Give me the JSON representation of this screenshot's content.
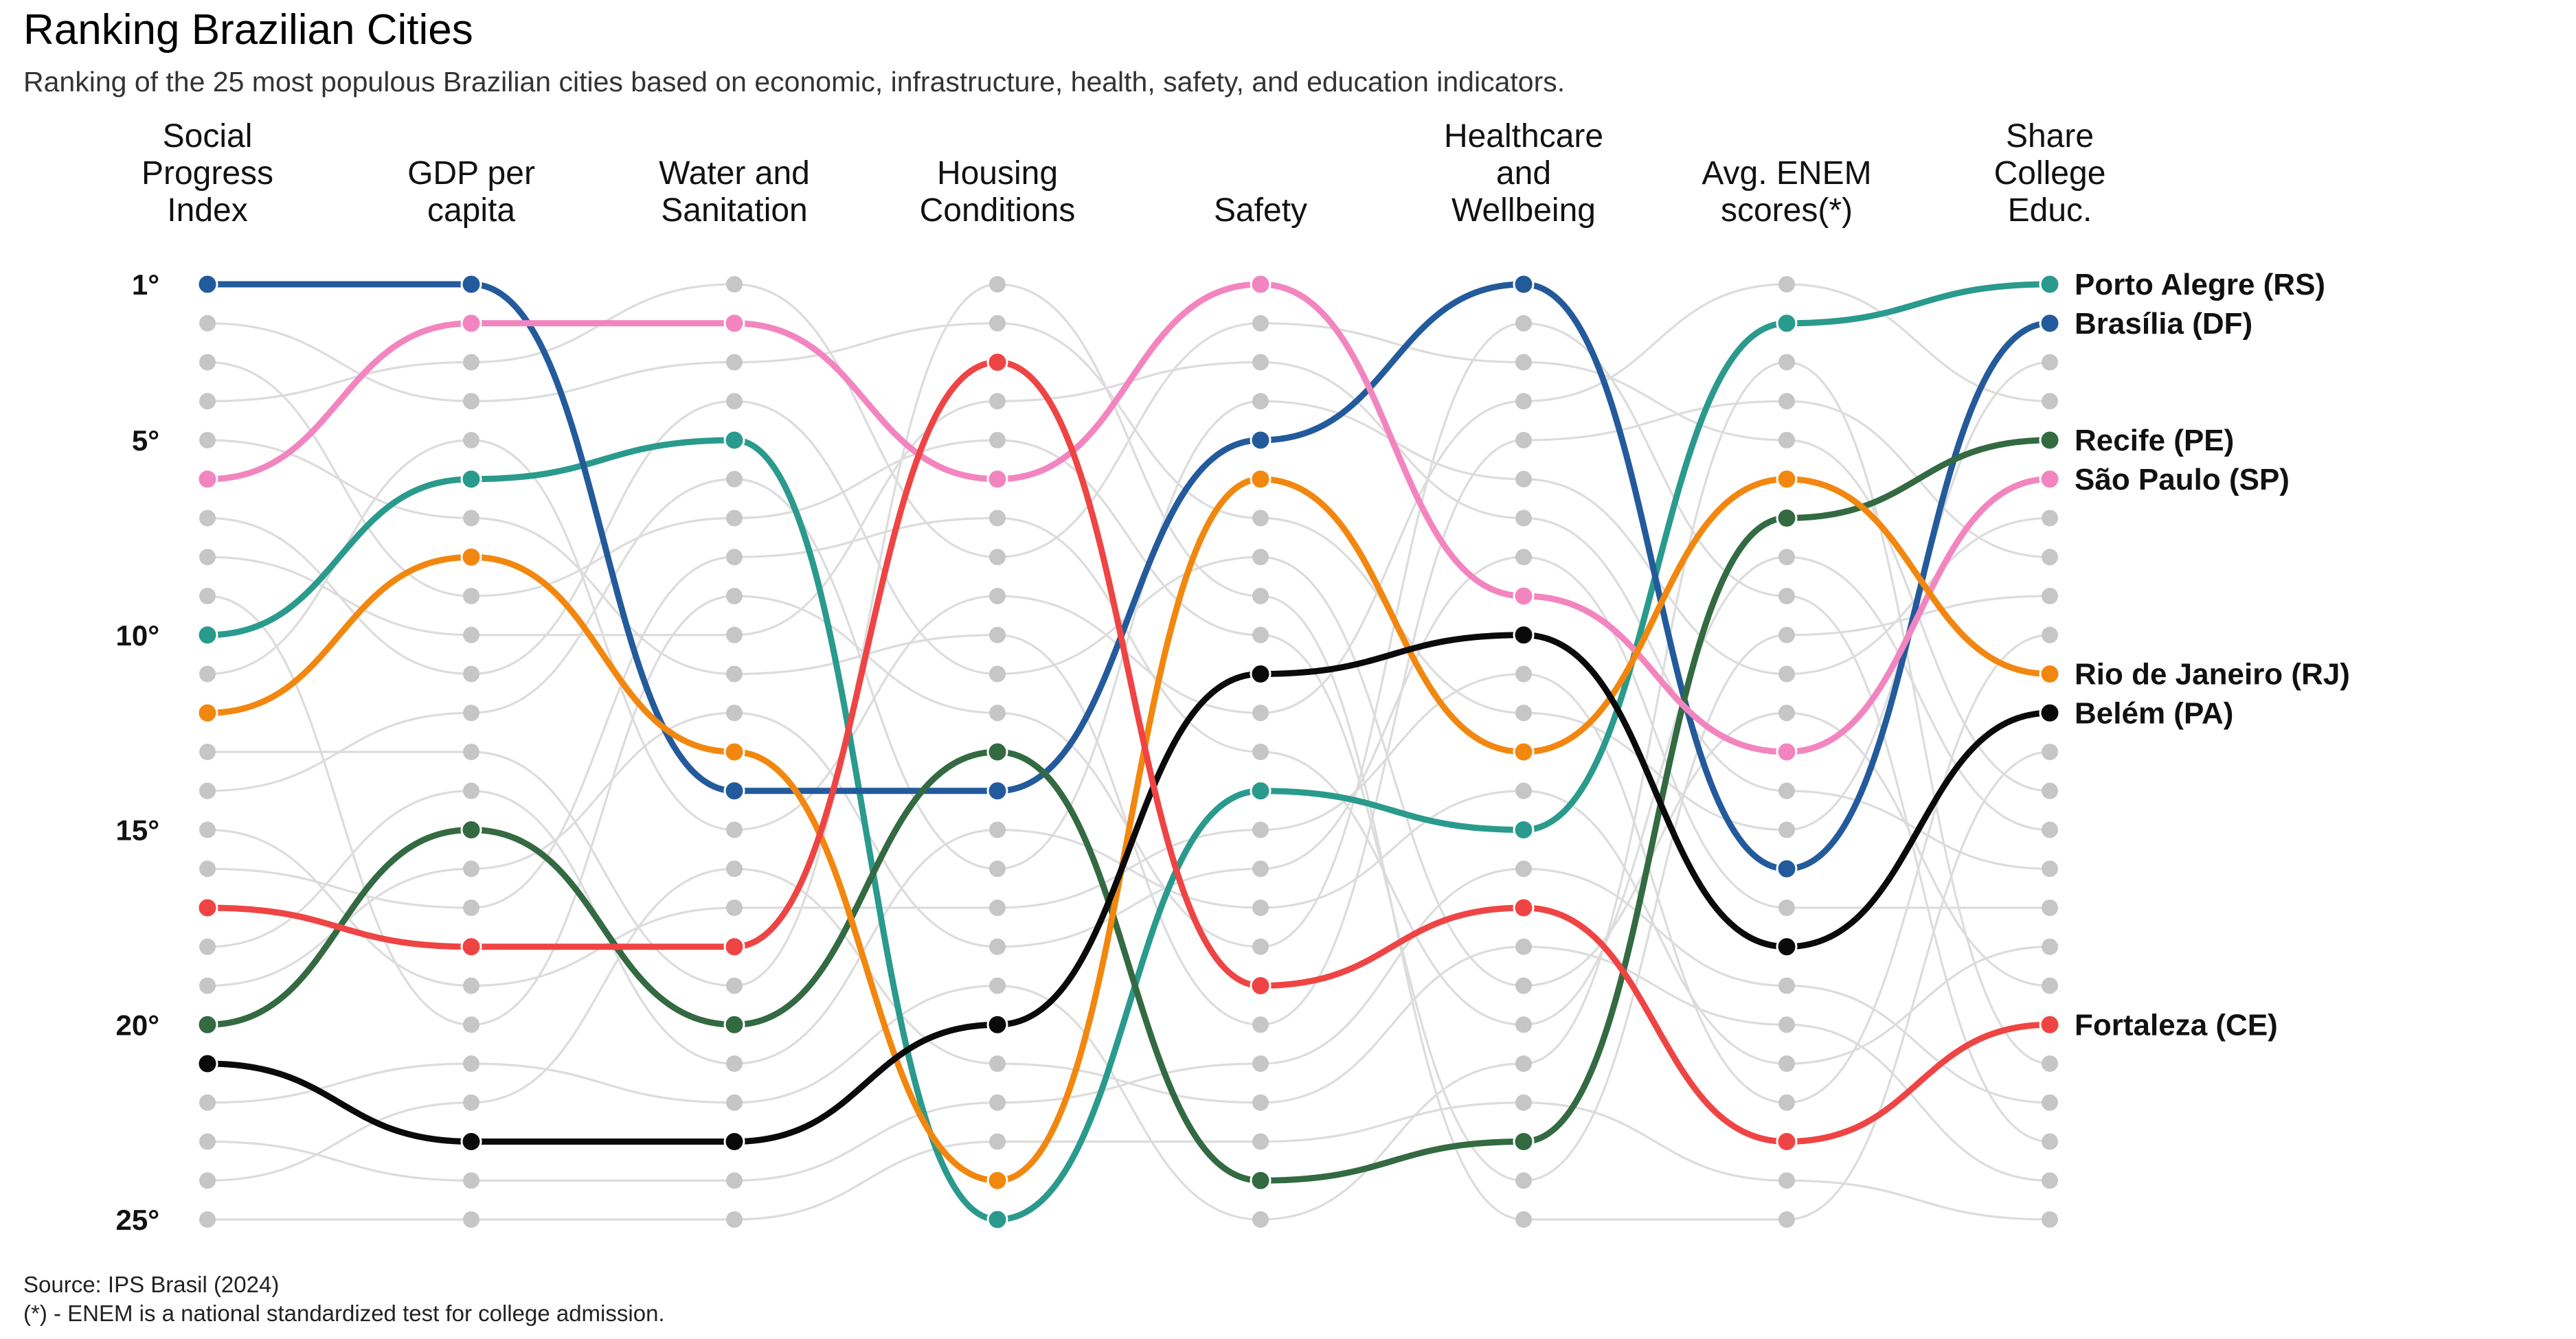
{
  "title": "Ranking Brazilian Cities",
  "subtitle": "Ranking of the 25 most populous Brazilian cities based on economic, infrastructure, health, safety, and education indicators.",
  "source": "Source: IPS Brasil (2024)",
  "footnote": "(*) - ENEM is a national standardized test for college admission.",
  "chart_data": {
    "type": "bump",
    "categories": [
      [
        "Social",
        "Progress",
        "Index"
      ],
      [
        "GDP per",
        "capita"
      ],
      [
        "Water and",
        "Sanitation"
      ],
      [
        "Housing",
        "Conditions"
      ],
      [
        "Safety"
      ],
      [
        "Healthcare",
        "and",
        "Wellbeing"
      ],
      [
        "Avg. ENEM",
        "scores(*)"
      ],
      [
        "Share",
        "College",
        "Educ."
      ]
    ],
    "y_ticks": [
      {
        "rank": 1,
        "label": "1°"
      },
      {
        "rank": 5,
        "label": "5°"
      },
      {
        "rank": 10,
        "label": "10°"
      },
      {
        "rank": 15,
        "label": "15°"
      },
      {
        "rank": 20,
        "label": "20°"
      },
      {
        "rank": 25,
        "label": "25°"
      }
    ],
    "rank_count": 25,
    "highlight_series": [
      {
        "name": "Porto Alegre (RS)",
        "color": "#2a9a8d",
        "ranks": [
          10,
          6,
          5,
          25,
          14,
          15,
          2,
          1
        ]
      },
      {
        "name": "Brasília (DF)",
        "color": "#235a9b",
        "ranks": [
          1,
          1,
          14,
          14,
          5,
          1,
          16,
          2
        ]
      },
      {
        "name": "Recife (PE)",
        "color": "#336a41",
        "ranks": [
          20,
          15,
          20,
          13,
          24,
          23,
          7,
          5
        ]
      },
      {
        "name": "São Paulo (SP)",
        "color": "#f285c0",
        "ranks": [
          6,
          2,
          2,
          6,
          1,
          9,
          13,
          6
        ]
      },
      {
        "name": "Rio de Janeiro (RJ)",
        "color": "#f2870f",
        "ranks": [
          12,
          8,
          13,
          24,
          6,
          13,
          6,
          11
        ]
      },
      {
        "name": "Belém (PA)",
        "color": "#0a0a0a",
        "ranks": [
          21,
          23,
          23,
          20,
          11,
          10,
          18,
          12
        ]
      },
      {
        "name": "Fortaleza (CE)",
        "color": "#ef4444",
        "ranks": [
          17,
          18,
          18,
          3,
          19,
          17,
          23,
          20
        ]
      }
    ],
    "background_series_ranks": [
      [
        2,
        4,
        3,
        2,
        7,
        12,
        15,
        3
      ],
      [
        3,
        9,
        7,
        5,
        10,
        24,
        10,
        9
      ],
      [
        4,
        3,
        1,
        8,
        2,
        3,
        5,
        14
      ],
      [
        5,
        7,
        11,
        10,
        20,
        5,
        4,
        8
      ],
      [
        7,
        11,
        4,
        11,
        8,
        19,
        12,
        19
      ],
      [
        8,
        10,
        10,
        4,
        3,
        7,
        14,
        16
      ],
      [
        9,
        20,
        9,
        12,
        18,
        2,
        9,
        23
      ],
      [
        11,
        5,
        15,
        9,
        12,
        4,
        1,
        4
      ],
      [
        13,
        13,
        19,
        1,
        9,
        25,
        25,
        13
      ],
      [
        14,
        12,
        6,
        16,
        4,
        6,
        11,
        7
      ],
      [
        15,
        19,
        17,
        17,
        15,
        11,
        22,
        10
      ],
      [
        16,
        17,
        8,
        7,
        13,
        20,
        8,
        15
      ],
      [
        18,
        14,
        21,
        15,
        17,
        14,
        21,
        18
      ],
      [
        19,
        16,
        12,
        18,
        16,
        8,
        17,
        17
      ],
      [
        22,
        21,
        22,
        19,
        25,
        21,
        3,
        21
      ],
      [
        23,
        24,
        24,
        22,
        21,
        16,
        19,
        22
      ],
      [
        24,
        22,
        16,
        21,
        22,
        18,
        20,
        24
      ],
      [
        25,
        25,
        25,
        23,
        23,
        22,
        24,
        25
      ]
    ],
    "colors": {
      "background_line": "#dcdcdc",
      "background_dot": "#c6c6c6"
    },
    "grid": false
  }
}
